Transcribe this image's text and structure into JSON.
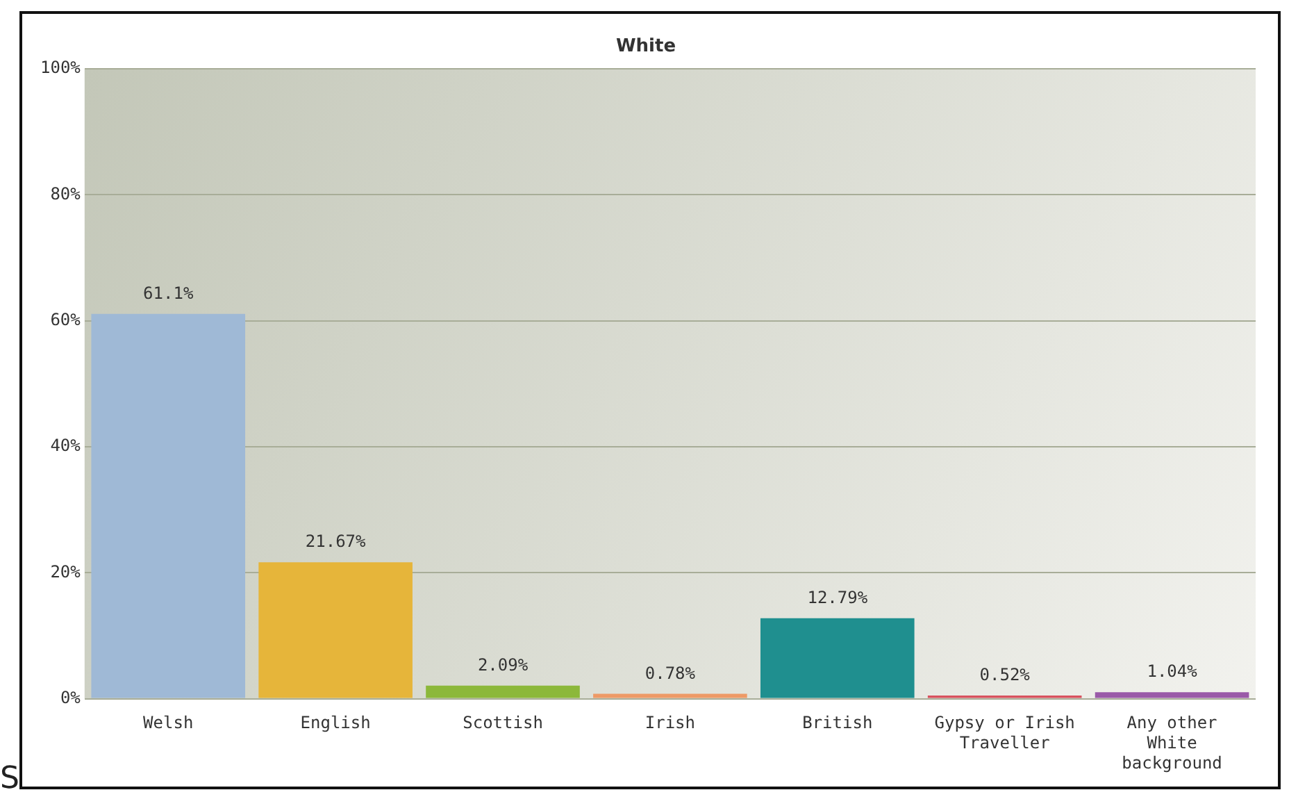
{
  "chart_data": {
    "type": "bar",
    "title": "White",
    "categories": [
      "Welsh",
      "English",
      "Scottish",
      "Irish",
      "British",
      "Gypsy or Irish Traveller",
      "Any other White background"
    ],
    "values": [
      61.1,
      21.67,
      2.09,
      0.78,
      12.79,
      0.52,
      1.04
    ],
    "colors": [
      "#9fb9d6",
      "#e6b53a",
      "#8cb83a",
      "#ee9a66",
      "#1f8f8f",
      "#d8525e",
      "#9a5aa8"
    ],
    "ylim": [
      0,
      100
    ],
    "yticks": [
      {
        "value": 0,
        "label": "0%"
      },
      {
        "value": 20,
        "label": "20%"
      },
      {
        "value": 40,
        "label": "40%"
      },
      {
        "value": 60,
        "label": "60%"
      },
      {
        "value": 80,
        "label": "80%"
      },
      {
        "value": 100,
        "label": "100%"
      }
    ],
    "value_labels": [
      "61.1%",
      "21.67%",
      "2.09%",
      "0.78%",
      "12.79%",
      "0.52%",
      "1.04%"
    ],
    "grid": "y",
    "legend": false,
    "annotations": [
      "S"
    ]
  }
}
